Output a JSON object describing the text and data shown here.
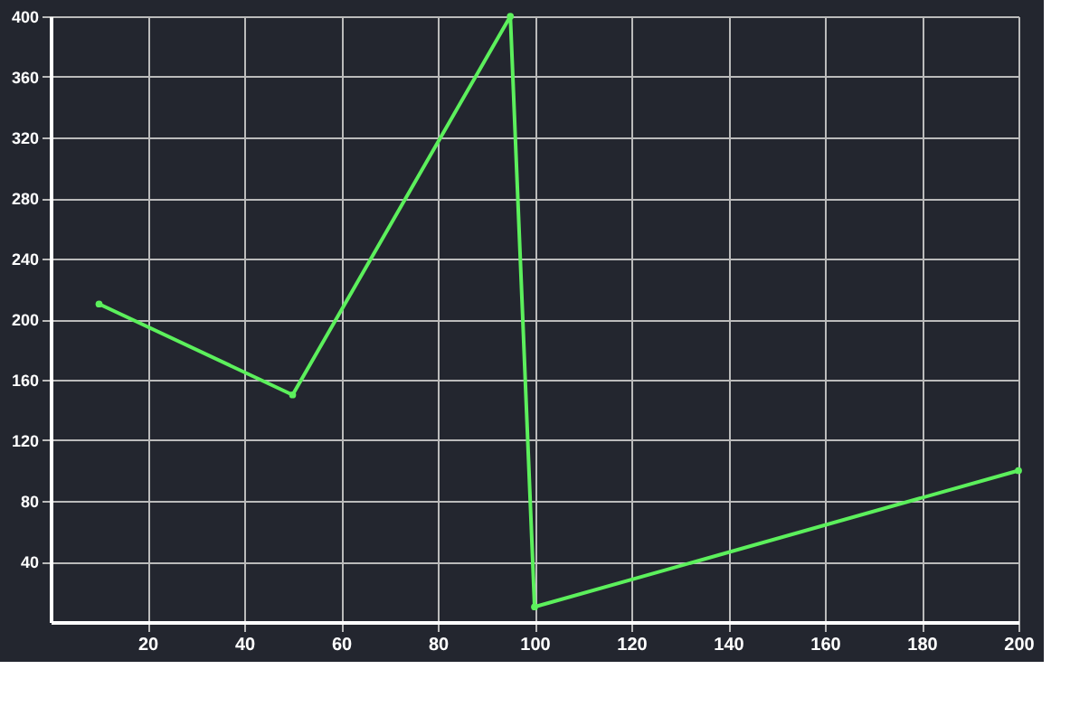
{
  "chart_data": {
    "type": "line",
    "x": [
      10,
      50,
      95,
      100,
      200
    ],
    "series": [
      {
        "color": "#5cf05c",
        "values": [
          210,
          150,
          400,
          10,
          100
        ]
      }
    ],
    "xlim": [
      0,
      200
    ],
    "xticks": [
      20,
      40,
      60,
      80,
      100,
      120,
      140,
      160,
      180,
      200
    ],
    "ylim": [
      0,
      400
    ],
    "yticks": [
      40,
      80,
      120,
      160,
      200,
      240,
      280,
      320,
      360,
      400
    ],
    "grid": true,
    "marker": "circle",
    "line_style": "solid"
  }
}
